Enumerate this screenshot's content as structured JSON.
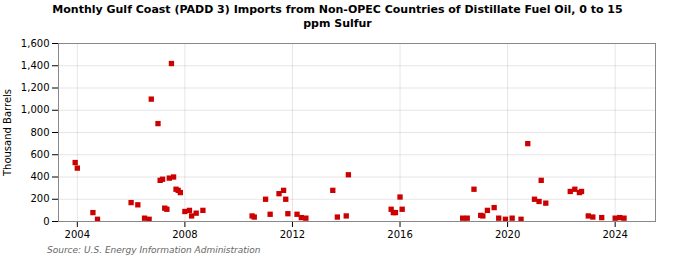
{
  "chart_data": {
    "type": "scatter",
    "title": "Monthly Gulf Coast (PADD 3) Imports from Non-OPEC Countries of Distillate Fuel Oil, 0 to 15\nppm Sulfur",
    "ylabel": "Thousand Barrels",
    "caption": "Source: U.S. Energy Information Administration",
    "color": "#cc0000",
    "marker": "square",
    "grid": true,
    "xlim": [
      2003.3,
      2025.5
    ],
    "xticks": [
      2004,
      2008,
      2012,
      2016,
      2020,
      2024
    ],
    "ylim": [
      0,
      1600
    ],
    "yticks": [
      0,
      200,
      400,
      600,
      800,
      {
        "value": 1000,
        "label": "1,000"
      },
      {
        "value": 1200,
        "label": "1,200"
      },
      {
        "value": 1400,
        "label": "1,400"
      },
      {
        "value": 1600,
        "label": "1,600"
      }
    ],
    "x": [
      2003.92,
      2004.0,
      2004.58,
      2004.75,
      2006.0,
      2006.25,
      2006.5,
      2006.67,
      2006.75,
      2007.0,
      2007.08,
      2007.17,
      2007.25,
      2007.33,
      2007.42,
      2007.5,
      2007.58,
      2007.67,
      2007.75,
      2007.83,
      2008.0,
      2008.17,
      2008.25,
      2008.42,
      2008.67,
      2010.5,
      2010.58,
      2011.0,
      2011.17,
      2011.5,
      2011.67,
      2011.75,
      2011.83,
      2012.17,
      2012.33,
      2012.5,
      2013.5,
      2013.67,
      2014.0,
      2014.08,
      2015.67,
      2015.75,
      2015.83,
      2016.0,
      2016.08,
      2018.33,
      2018.5,
      2018.75,
      2019.0,
      2019.08,
      2019.25,
      2019.5,
      2019.67,
      2019.92,
      2020.17,
      2020.5,
      2020.75,
      2021.0,
      2021.17,
      2021.25,
      2021.42,
      2022.33,
      2022.5,
      2022.67,
      2022.75,
      2023.0,
      2023.17,
      2023.5,
      2024.0,
      2024.17,
      2024.33
    ],
    "values": [
      530,
      480,
      80,
      20,
      170,
      150,
      30,
      20,
      1100,
      880,
      370,
      380,
      120,
      110,
      390,
      1420,
      400,
      290,
      280,
      260,
      90,
      100,
      50,
      75,
      100,
      50,
      40,
      200,
      65,
      250,
      280,
      200,
      70,
      65,
      35,
      30,
      280,
      40,
      50,
      420,
      110,
      80,
      80,
      220,
      110,
      30,
      30,
      290,
      55,
      50,
      100,
      125,
      30,
      20,
      30,
      20,
      700,
      200,
      180,
      370,
      165,
      270,
      290,
      260,
      270,
      50,
      40,
      35,
      30,
      35,
      30
    ]
  }
}
